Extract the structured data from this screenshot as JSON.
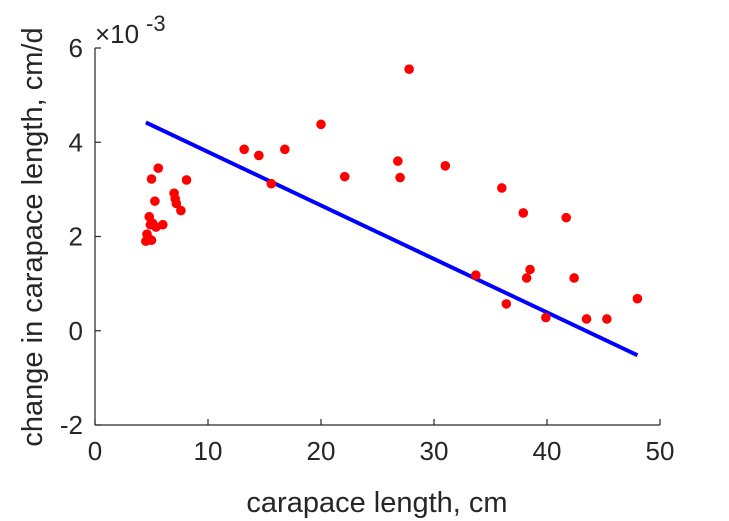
{
  "chart_data": {
    "type": "scatter",
    "xlabel": "carapace length, cm",
    "ylabel": "change in carapace length, cm/d",
    "exponent_base": "×10",
    "exponent_power": "-3",
    "xlim": [
      0,
      50
    ],
    "ylim": [
      -2,
      6
    ],
    "x_ticks": [
      "0",
      "10",
      "20",
      "30",
      "40",
      "50"
    ],
    "y_ticks": [
      "-2",
      "0",
      "2",
      "4",
      "6"
    ],
    "grid": false,
    "legend": "none",
    "colors": {
      "points": "#ff0000",
      "fit_line": "#0000ff",
      "axis": "#262626"
    },
    "series": [
      {
        "marker": "dot",
        "x": [
          4.5,
          4.6,
          4.8,
          4.8,
          4.9,
          5.0,
          5.0,
          5.1,
          5.3,
          5.4,
          5.6,
          6.0,
          7.0,
          7.1,
          7.2,
          7.6,
          8.1,
          13.2,
          14.5,
          15.6,
          16.8,
          20.0,
          22.1,
          26.8,
          27.0,
          27.8,
          31.0,
          33.7,
          36.0,
          36.4,
          37.9,
          38.2,
          38.5,
          39.9,
          41.7,
          42.4,
          43.5,
          45.3,
          48.0
        ],
        "y": [
          1.9,
          2.05,
          1.95,
          2.42,
          2.25,
          3.22,
          1.92,
          2.28,
          2.75,
          2.2,
          3.45,
          2.25,
          2.92,
          2.8,
          2.7,
          2.55,
          3.2,
          3.85,
          3.72,
          3.12,
          3.85,
          4.38,
          3.27,
          3.6,
          3.25,
          5.55,
          3.5,
          1.18,
          3.03,
          0.57,
          2.5,
          1.12,
          1.3,
          0.28,
          2.4,
          1.12,
          0.25,
          0.25,
          0.68
        ]
      },
      {
        "type": "line",
        "x": [
          4.5,
          48.0
        ],
        "y": [
          4.42,
          -0.52
        ]
      }
    ]
  }
}
